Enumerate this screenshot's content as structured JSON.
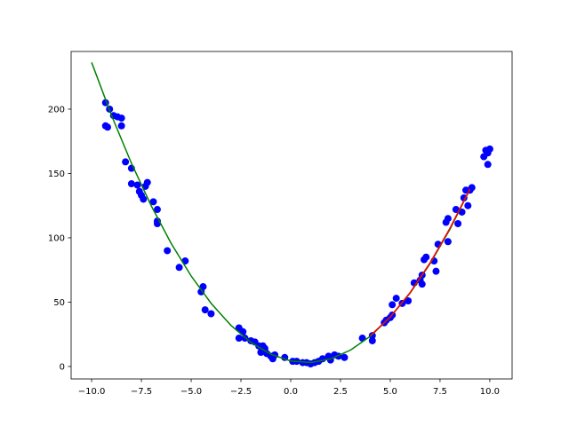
{
  "chart_data": {
    "type": "scatter",
    "xlim": [
      -11.03,
      11.12
    ],
    "ylim": [
      -9.7,
      244.8
    ],
    "xticks": [
      {
        "value": -10,
        "label": "−10.0"
      },
      {
        "value": -7.5,
        "label": "−7.5"
      },
      {
        "value": -5,
        "label": "−5.0"
      },
      {
        "value": -2.5,
        "label": "−2.5"
      },
      {
        "value": 0,
        "label": "0.0"
      },
      {
        "value": 2.5,
        "label": "2.5"
      },
      {
        "value": 5,
        "label": "5.0"
      },
      {
        "value": 7.5,
        "label": "7.5"
      },
      {
        "value": 10,
        "label": "10.0"
      }
    ],
    "yticks": [
      0,
      50,
      100,
      150,
      200
    ],
    "series": [
      {
        "type": "scatter",
        "color": "#0000ff",
        "x": [
          -9.3,
          -9.1,
          -9.3,
          -9.2,
          -8.9,
          -8.7,
          -8.5,
          -8.5,
          -8.3,
          -8.0,
          -8.0,
          -7.7,
          -7.6,
          -7.5,
          -7.4,
          -7.3,
          -7.2,
          -6.9,
          -6.7,
          -6.7,
          -6.7,
          -6.2,
          -5.6,
          -5.3,
          -4.5,
          -4.4,
          -4.3,
          -4.0,
          -2.6,
          -2.6,
          -2.4,
          -2.3,
          -2.0,
          -1.8,
          -1.6,
          -1.5,
          -1.4,
          -1.3,
          -1.2,
          -1.0,
          -0.9,
          -0.8,
          -0.3,
          0.1,
          0.3,
          0.6,
          0.8,
          1.0,
          1.2,
          1.4,
          1.6,
          1.9,
          2.0,
          2.2,
          2.4,
          2.7,
          3.6,
          4.1,
          4.1,
          4.7,
          4.8,
          5.0,
          5.1,
          5.1,
          5.3,
          5.6,
          5.9,
          6.2,
          6.5,
          6.6,
          6.6,
          6.7,
          6.8,
          7.2,
          7.3,
          7.4,
          7.8,
          7.9,
          7.9,
          8.3,
          8.4,
          8.6,
          8.7,
          8.8,
          8.9,
          9.0,
          9.1,
          9.7,
          9.8,
          9.9,
          9.9,
          10.0
        ],
        "values": [
          205,
          200,
          187,
          186,
          195,
          194,
          193,
          187,
          159,
          154,
          142,
          141,
          136,
          133,
          130,
          140,
          143,
          128,
          122,
          113,
          111,
          90,
          77,
          82,
          58,
          62,
          44,
          41,
          22,
          30,
          27,
          22,
          20,
          19,
          16,
          11,
          16,
          14,
          10,
          8,
          6,
          9,
          7,
          4,
          4,
          3,
          3,
          2,
          3,
          4,
          6,
          8,
          5,
          9,
          8,
          7,
          22,
          24,
          20,
          34,
          36,
          38,
          40,
          48,
          53,
          49,
          51,
          65,
          67,
          71,
          64,
          83,
          85,
          82,
          74,
          95,
          112,
          97,
          115,
          122,
          111,
          120,
          131,
          137,
          125,
          137,
          139,
          163,
          168,
          157,
          166,
          169
        ]
      },
      {
        "type": "line",
        "color": "#008000",
        "x": [
          -10,
          -9,
          -8,
          -7,
          -6,
          -5,
          -4,
          -3,
          -2,
          -1,
          0,
          1,
          2,
          3,
          4,
          5,
          6,
          7,
          8,
          9
        ],
        "values": [
          236.3,
          195.1,
          157.9,
          124.7,
          95.5,
          70.3,
          49.1,
          31.9,
          18.7,
          9.5,
          4.3,
          3.1,
          5.9,
          12.7,
          23.5,
          38.3,
          57.1,
          79.9,
          106.7,
          137.5
        ]
      },
      {
        "type": "line",
        "color": "#ff0000",
        "x": [
          4,
          5,
          6,
          7,
          8,
          9
        ],
        "values": [
          24,
          38.5,
          57.5,
          80.5,
          107.5,
          138
        ]
      }
    ]
  }
}
